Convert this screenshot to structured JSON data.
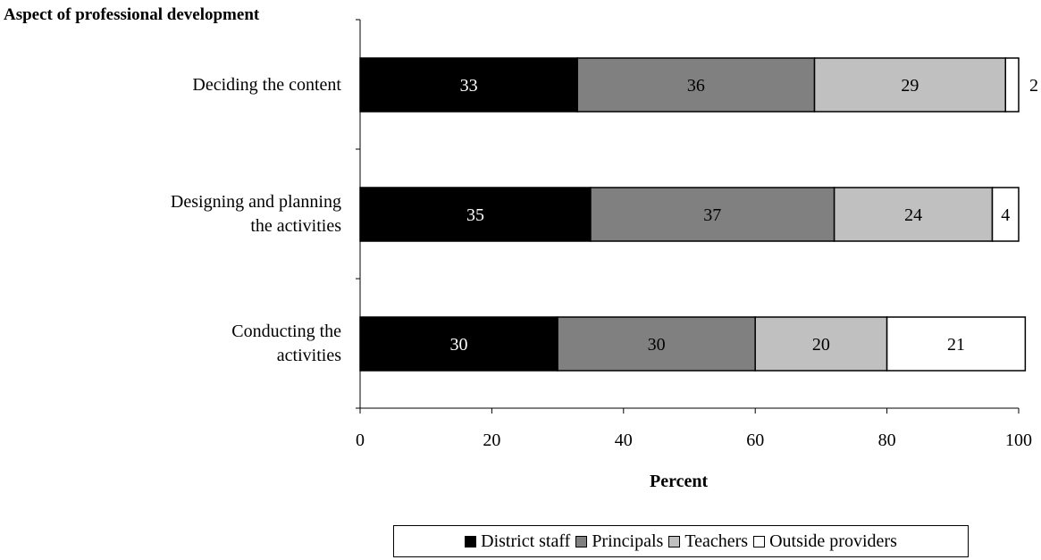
{
  "chart_data": {
    "type": "bar",
    "orientation": "horizontal",
    "stacked": true,
    "y_axis_title": "Aspect of professional development",
    "xlabel": "Percent",
    "xlim": [
      0,
      100
    ],
    "x_ticks": [
      0,
      20,
      40,
      60,
      80,
      100
    ],
    "categories": [
      [
        "Deciding the content"
      ],
      [
        "Designing and planning",
        "the activities"
      ],
      [
        "Conducting the",
        "activities"
      ]
    ],
    "series": [
      {
        "name": "District staff",
        "color": "#000000",
        "label_color": "#ffffff",
        "values": [
          33,
          35,
          30
        ]
      },
      {
        "name": "Principals",
        "color": "#808080",
        "label_color": "#000000",
        "values": [
          36,
          37,
          30
        ]
      },
      {
        "name": "Teachers",
        "color": "#c0c0c0",
        "label_color": "#000000",
        "values": [
          29,
          24,
          20
        ]
      },
      {
        "name": "Outside providers",
        "color": "#ffffff",
        "label_color": "#000000",
        "values": [
          2,
          4,
          21
        ]
      }
    ],
    "legend_position": "bottom",
    "grid": false
  }
}
